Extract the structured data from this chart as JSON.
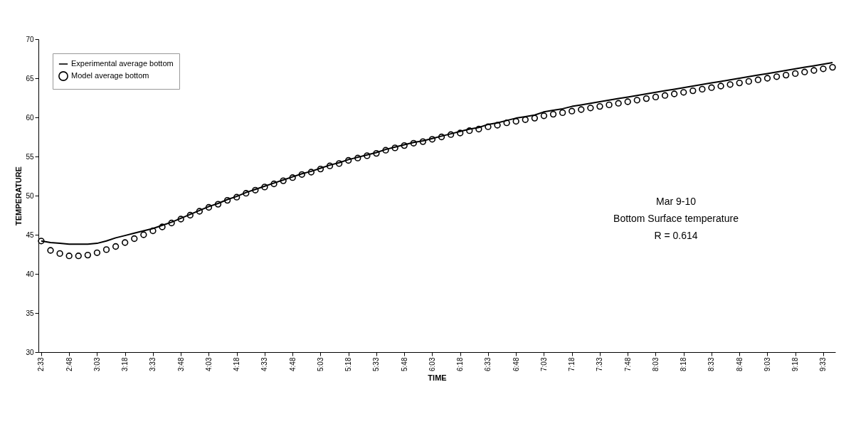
{
  "chart_data": {
    "type": "line",
    "xlabel": "TIME",
    "ylabel": "TEMPERATURE",
    "categories": [
      "2:33",
      null,
      null,
      "2:48",
      null,
      null,
      "3:03",
      null,
      null,
      "3:18",
      null,
      null,
      "3:33",
      null,
      null,
      "3:48",
      null,
      null,
      "4:03",
      null,
      null,
      "4:18",
      null,
      null,
      "4:33",
      null,
      null,
      "4:48",
      null,
      null,
      "5:03",
      null,
      null,
      "5:18",
      null,
      null,
      "5:33",
      null,
      null,
      "5:48",
      null,
      null,
      "6:03",
      null,
      null,
      "6:18",
      null,
      null,
      "6:33",
      null,
      null,
      "6:48",
      null,
      null,
      "7:03",
      null,
      null,
      "7:18",
      null,
      null,
      "7:33",
      null,
      null,
      "7:48",
      null,
      null,
      "8:03",
      null,
      null,
      "8:18",
      null,
      null,
      "8:33",
      null,
      null,
      "8:48",
      null,
      null,
      "9:03",
      null,
      null,
      "9:18",
      null,
      null,
      "9:33",
      null
    ],
    "series": [
      {
        "name": "Experimental average bottom",
        "marker": "none",
        "color": "#000000",
        "values": [
          44.2,
          44.0,
          43.9,
          43.8,
          43.8,
          43.8,
          43.9,
          44.2,
          44.6,
          44.9,
          45.2,
          45.5,
          45.8,
          46.2,
          46.6,
          47.1,
          47.6,
          48.1,
          48.6,
          49.0,
          49.5,
          49.9,
          50.4,
          50.8,
          51.2,
          51.6,
          52.0,
          52.4,
          52.8,
          53.1,
          53.5,
          53.9,
          54.2,
          54.6,
          54.9,
          55.2,
          55.5,
          55.9,
          56.2,
          56.5,
          56.8,
          57.0,
          57.3,
          57.6,
          57.9,
          58.2,
          58.5,
          58.7,
          59.1,
          59.3,
          59.6,
          59.9,
          60.1,
          60.3,
          60.7,
          60.9,
          61.1,
          61.4,
          61.6,
          61.8,
          62.0,
          62.2,
          62.4,
          62.6,
          62.8,
          63.0,
          63.2,
          63.4,
          63.6,
          63.8,
          64.0,
          64.2,
          64.4,
          64.6,
          64.8,
          65.0,
          65.2,
          65.4,
          65.6,
          65.8,
          66.0,
          66.2,
          66.4,
          66.6,
          66.8,
          67.0
        ]
      },
      {
        "name": "Model average bottom",
        "type": "scatter",
        "marker": "circle",
        "color": "#000000",
        "values": [
          44.2,
          43.0,
          42.6,
          42.3,
          42.3,
          42.4,
          42.7,
          43.1,
          43.5,
          44.0,
          44.5,
          45.0,
          45.5,
          46.0,
          46.5,
          47.0,
          47.5,
          48.0,
          48.5,
          48.9,
          49.4,
          49.8,
          50.3,
          50.7,
          51.1,
          51.5,
          51.9,
          52.3,
          52.7,
          53.0,
          53.4,
          53.8,
          54.1,
          54.5,
          54.8,
          55.1,
          55.4,
          55.8,
          56.1,
          56.4,
          56.7,
          56.9,
          57.2,
          57.5,
          57.8,
          58.0,
          58.3,
          58.5,
          58.8,
          59.0,
          59.3,
          59.5,
          59.7,
          59.9,
          60.2,
          60.4,
          60.6,
          60.8,
          61.0,
          61.2,
          61.4,
          61.6,
          61.8,
          62.0,
          62.2,
          62.4,
          62.6,
          62.8,
          63.0,
          63.2,
          63.4,
          63.6,
          63.8,
          64.0,
          64.2,
          64.4,
          64.6,
          64.8,
          65.0,
          65.2,
          65.4,
          65.6,
          65.8,
          66.0,
          66.2,
          66.4
        ]
      }
    ],
    "ylim": [
      30,
      70
    ],
    "yticks": [
      30,
      35,
      40,
      45,
      50,
      55,
      60,
      65,
      70
    ],
    "legend": "top left",
    "annotations": [
      "Mar 9-10",
      "Bottom Surface temperature",
      "R = 0.614"
    ]
  }
}
